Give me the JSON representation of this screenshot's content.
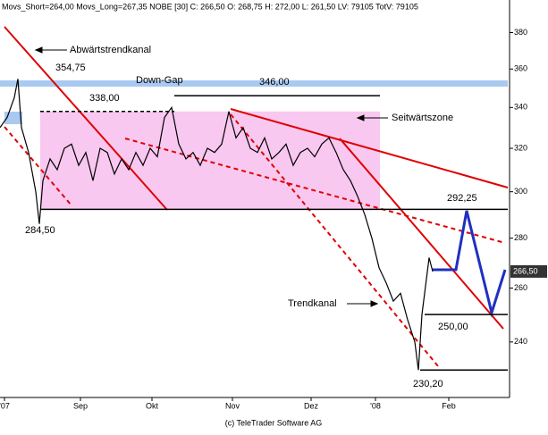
{
  "chart_data": {
    "type": "line",
    "header": "Movs_Short=264,00 Movs_Long=267,35 NOBE [30] C: 266,50 O: 268,75 H: 272,00 L: 261,50 LV: 79105 TotV: 79105",
    "footer": "(c) TeleTrader Software AG",
    "x": [
      0,
      2,
      4,
      5,
      6,
      8,
      10,
      11,
      12,
      14,
      16,
      18,
      20,
      22,
      24,
      26,
      28,
      30,
      32,
      34,
      36,
      38,
      40,
      42,
      44,
      46,
      48,
      50,
      52,
      54,
      56,
      58,
      60,
      62,
      64,
      66,
      68,
      70,
      72,
      74,
      76,
      78,
      80,
      82,
      84,
      86,
      88,
      90,
      92,
      94,
      96,
      98,
      100,
      102,
      104,
      106,
      108,
      110,
      112,
      114,
      116,
      117,
      118,
      120,
      121
    ],
    "series": [
      {
        "color": "#000000",
        "values": [
          330,
          335,
          345,
          354.75,
          330,
          318,
          300,
          286,
          305,
          315,
          310,
          320,
          322,
          312,
          318,
          305,
          320,
          318,
          308,
          315,
          310,
          318,
          312,
          320,
          316,
          335,
          340,
          322,
          315,
          318,
          312,
          320,
          318,
          322,
          338,
          325,
          330,
          320,
          318,
          325,
          315,
          318,
          322,
          312,
          318,
          320,
          316,
          322,
          325,
          318,
          310,
          305,
          298,
          290,
          280,
          268,
          262,
          255,
          258,
          248,
          240,
          230.2,
          250,
          272,
          266.5
        ]
      }
    ],
    "last_price": {
      "value": 266.5,
      "label": "266,50"
    },
    "xlim": [
      0,
      142.5
    ],
    "xticks": [
      {
        "value": 1.25,
        "label": "'07"
      },
      {
        "value": 22.5,
        "label": "Sep"
      },
      {
        "value": 42.5,
        "label": "Okt"
      },
      {
        "value": 65,
        "label": "Nov"
      },
      {
        "value": 87,
        "label": "Dez"
      },
      {
        "value": 105,
        "label": "'08"
      },
      {
        "value": 125.5,
        "label": "Feb"
      }
    ],
    "ylim": [
      221,
      391
    ],
    "log": true,
    "yticks": [
      240,
      260,
      280,
      300,
      320,
      340,
      360,
      380
    ],
    "levels": [
      {
        "value": 354.75,
        "label": "354,75"
      },
      {
        "value": 284.5,
        "label": "284,50"
      },
      {
        "value": 338,
        "label": "338,00"
      },
      {
        "value": 346,
        "label": "346,00"
      },
      {
        "value": 292.25,
        "label": "292,25"
      },
      {
        "value": 250,
        "label": "250,00"
      },
      {
        "value": 230.2,
        "label": "230,20"
      }
    ],
    "annotations": [
      "Abwärtstrendkanal",
      "Down-Gap",
      "Seitwärtszone",
      "Trendkanal"
    ]
  }
}
